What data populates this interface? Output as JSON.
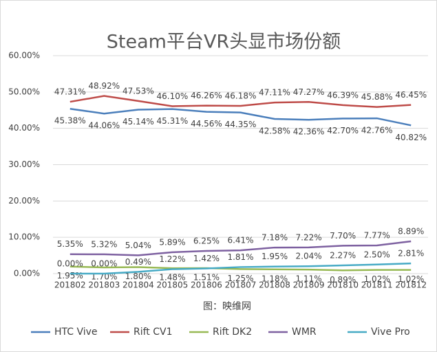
{
  "chart_data": {
    "type": "line",
    "title": "Steam平台VR头显市场份额",
    "subtitle": "图：映维网",
    "categories": [
      "201802",
      "201803",
      "201804",
      "201805",
      "201806",
      "201807",
      "201808",
      "201809",
      "201810",
      "201811",
      "201812"
    ],
    "series": [
      {
        "name": "HTC Vive",
        "color": "#4a7ebb",
        "values": [
          45.38,
          44.06,
          45.14,
          45.31,
          44.56,
          44.35,
          42.58,
          42.36,
          42.7,
          42.76,
          40.82
        ],
        "value_labels": [
          "45.38%",
          "44.06%",
          "45.14%",
          "45.31%",
          "44.56%",
          "44.35%",
          "42.58%",
          "42.36%",
          "42.70%",
          "42.76%",
          "40.82%"
        ]
      },
      {
        "name": "Rift CV1",
        "color": "#be4b48",
        "values": [
          47.31,
          48.92,
          47.53,
          46.1,
          46.26,
          46.18,
          47.11,
          47.27,
          46.39,
          45.88,
          46.45
        ],
        "value_labels": [
          "47.31%",
          "48.92%",
          "47.53%",
          "46.10%",
          "46.26%",
          "46.18%",
          "47.11%",
          "47.27%",
          "46.39%",
          "45.88%",
          "46.45%"
        ]
      },
      {
        "name": "Rift DK2",
        "color": "#98b954",
        "values": [
          1.95,
          1.7,
          1.8,
          1.48,
          1.51,
          1.25,
          1.18,
          1.11,
          0.89,
          1.02,
          1.02
        ],
        "value_labels": [
          "1.95%",
          "1.70%",
          "1.80%",
          "1.48%",
          "1.51%",
          "1.25%",
          "1.18%",
          "1.11%",
          "0.89%",
          "1.02%",
          "1.02%"
        ]
      },
      {
        "name": "WMR",
        "color": "#7d60a0",
        "values": [
          5.35,
          5.32,
          5.04,
          5.89,
          6.25,
          6.41,
          7.18,
          7.22,
          7.7,
          7.77,
          8.89
        ],
        "value_labels": [
          "5.35%",
          "5.32%",
          "5.04%",
          "5.89%",
          "6.25%",
          "6.41%",
          "7.18%",
          "7.22%",
          "7.70%",
          "7.77%",
          "8.89%"
        ]
      },
      {
        "name": "Vive Pro",
        "color": "#46aac5",
        "values": [
          0.0,
          0.0,
          0.49,
          1.22,
          1.42,
          1.81,
          1.95,
          2.04,
          2.27,
          2.5,
          2.81
        ],
        "value_labels": [
          "0.00%",
          "0.00%",
          "0.49%",
          "1.22%",
          "1.42%",
          "1.81%",
          "1.95%",
          "2.04%",
          "2.27%",
          "2.50%",
          "2.81%"
        ]
      }
    ],
    "ylim": [
      0,
      60
    ],
    "yticks": [
      {
        "value": 0,
        "label": "0.00%"
      },
      {
        "value": 10,
        "label": "10.00%"
      },
      {
        "value": 20,
        "label": "20.00%"
      },
      {
        "value": 30,
        "label": "30.00%"
      },
      {
        "value": 40,
        "label": "40.00%"
      },
      {
        "value": 50,
        "label": "50.00%"
      },
      {
        "value": 60,
        "label": "60.00%"
      }
    ],
    "grid": true,
    "legend": "bottom"
  }
}
